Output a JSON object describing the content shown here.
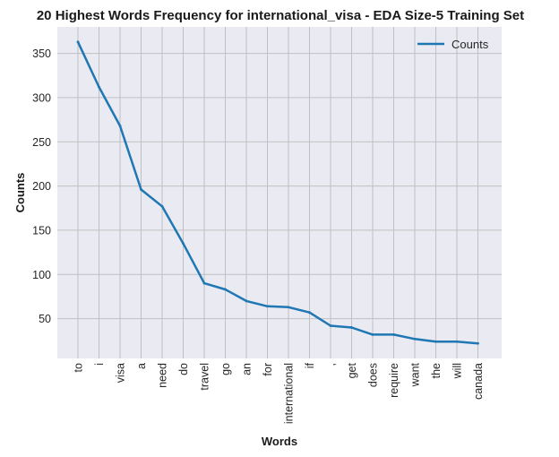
{
  "chart_data": {
    "type": "line",
    "title": "20 Highest Words Frequency for international_visa - EDA Size-5 Training Set",
    "xlabel": "Words",
    "ylabel": "Counts",
    "categories": [
      "to",
      "i",
      "visa",
      "a",
      "need",
      "do",
      "travel",
      "go",
      "an",
      "for",
      "international",
      "if",
      ",",
      "get",
      "does",
      "require",
      "want",
      "the",
      "will",
      "canada"
    ],
    "series": [
      {
        "name": "Counts",
        "color": "#1f77b4",
        "values": [
          363,
          312,
          268,
          196,
          177,
          135,
          90,
          83,
          70,
          64,
          63,
          57,
          42,
          40,
          32,
          32,
          27,
          24,
          24,
          22
        ]
      }
    ],
    "yticks": [
      50,
      100,
      150,
      200,
      250,
      300,
      350
    ],
    "ylim": [
      5,
      380
    ],
    "grid": true,
    "legend_position": "top-right",
    "background_color": "#eaeaf2",
    "grid_color": "#c0c0c0"
  }
}
